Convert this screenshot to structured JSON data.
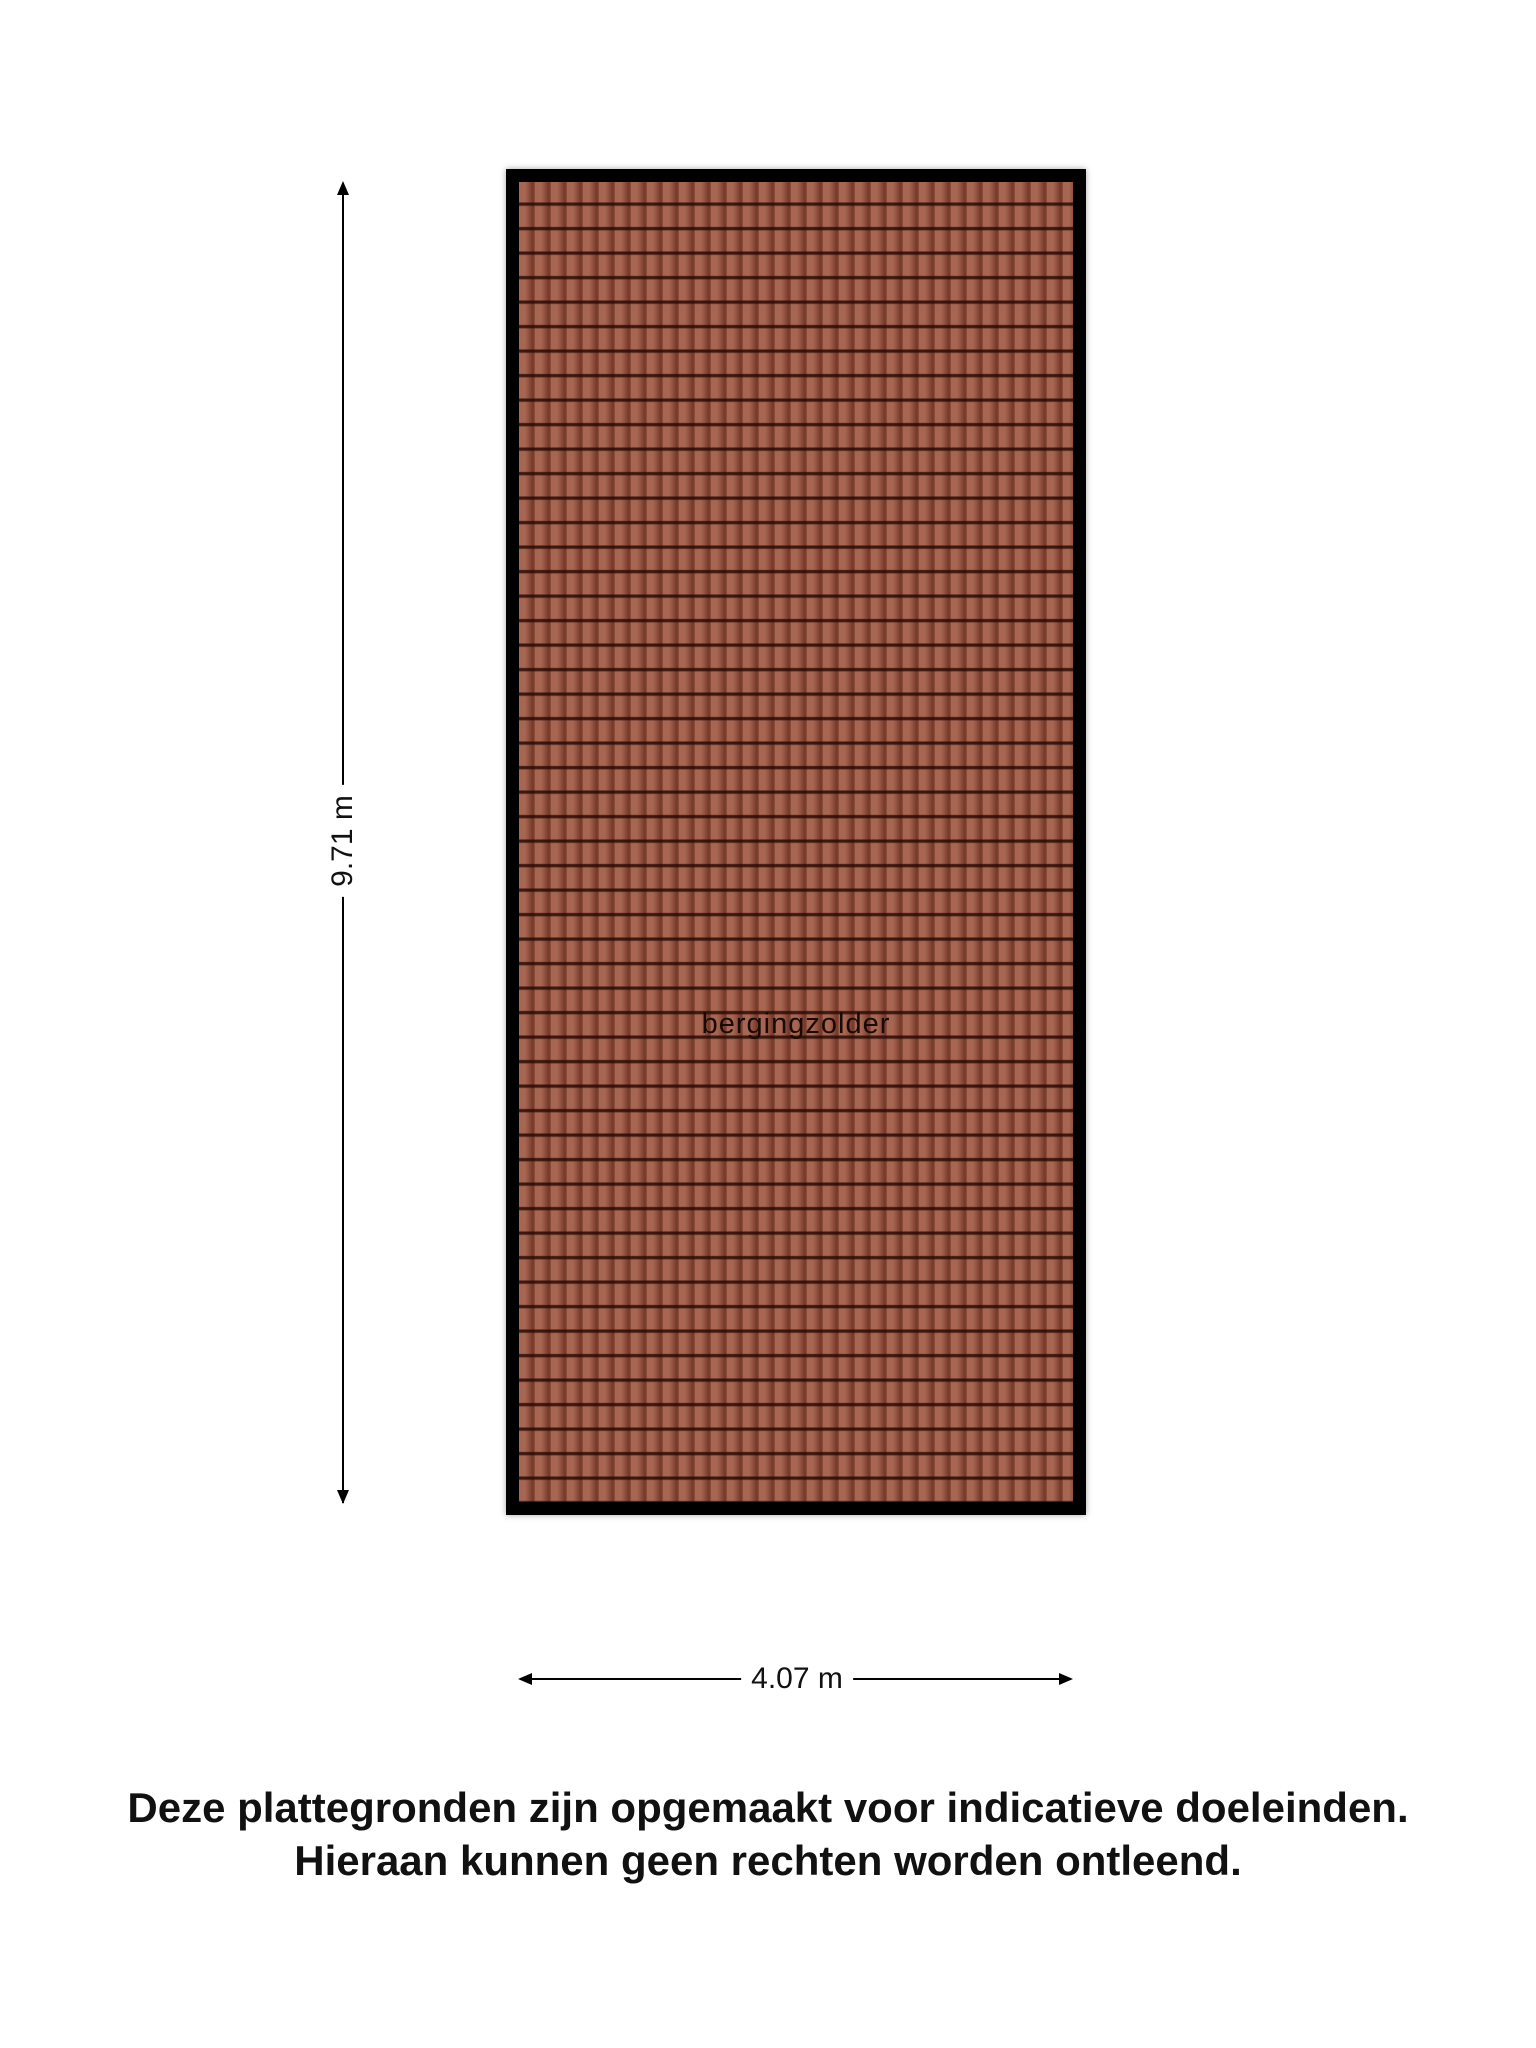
{
  "room": {
    "label": "bergingzolder",
    "fill": "tile-roof",
    "color": "#9b5642"
  },
  "dimensions": {
    "height": "9.71 m",
    "width": "4.07 m"
  },
  "disclaimer": {
    "line1": "Deze plattegronden zijn opgemaakt voor indicatieve doeleinden.",
    "line2": "Hieraan kunnen geen rechten worden ontleend."
  }
}
